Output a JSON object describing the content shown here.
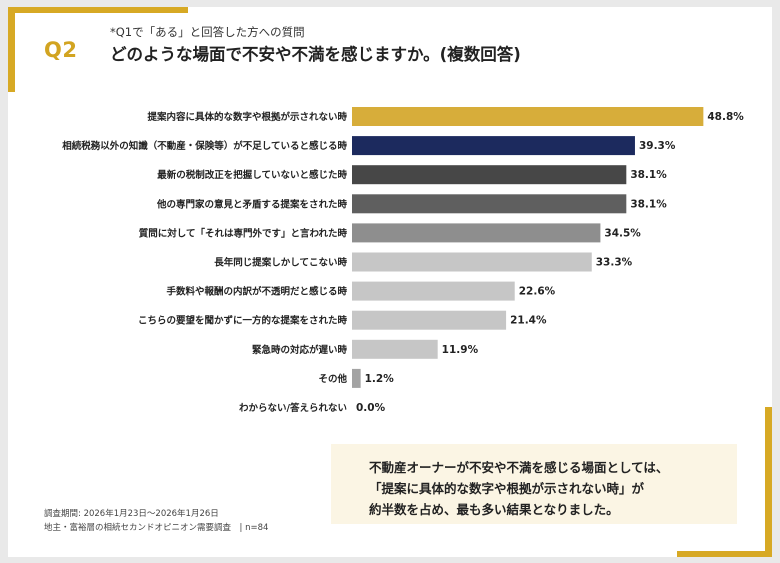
{
  "header": {
    "q_label": "Q2",
    "subtitle": "*Q1で「ある」と回答した方への質問",
    "title": "どのような場面で不安や不満を感じますか。(複数回答)"
  },
  "chart_data": {
    "type": "bar",
    "orientation": "horizontal",
    "categories": [
      "提案内容に具体的な数字や根拠が示されない時",
      "相続税務以外の知識（不動産・保険等）が不足していると感じる時",
      "最新の税制改正を把握していないと感じた時",
      "他の専門家の意見と矛盾する提案をされた時",
      "質問に対して「それは専門外です」と言われた時",
      "長年同じ提案しかしてこない時",
      "手数料や報酬の内訳が不透明だと感じる時",
      "こちらの要望を聞かずに一方的な提案をされた時",
      "緊急時の対応が遅い時",
      "その他",
      "わからない/答えられない"
    ],
    "values": [
      48.8,
      39.3,
      38.1,
      38.1,
      34.5,
      33.3,
      22.6,
      21.4,
      11.9,
      1.2,
      0.0
    ],
    "value_labels": [
      "48.8%",
      "39.3%",
      "38.1%",
      "38.1%",
      "34.5%",
      "33.3%",
      "22.6%",
      "21.4%",
      "11.9%",
      "1.2%",
      "0.0%"
    ],
    "bar_colors": [
      "#d7ad3a",
      "#1c2a5e",
      "#474747",
      "#5f5f5f",
      "#8e8e8e",
      "#c6c6c6",
      "#c6c6c6",
      "#c6c6c6",
      "#c6c6c6",
      "#a3a3a3",
      "#c6c6c6"
    ],
    "xlim": [
      0,
      50
    ],
    "grid": false,
    "legend": "none"
  },
  "summary": {
    "lines": [
      "不動産オーナーが不安や不満を感じる場面としては、",
      "「提案に具体的な数字や根拠が示されない時」が",
      "約半数を占め、最も多い結果となりました。"
    ]
  },
  "footer": {
    "line1": "調査期間: 2026年1月23日〜2026年1月26日",
    "line2": "地主・富裕層の相続セカンドオピニオン需要調査　| n=84"
  },
  "colors": {
    "accent": "#d7a924",
    "highlight_bar": "#d7ad3a",
    "navy_bar": "#1c2a5e",
    "summary_bg": "#fbf5e4"
  }
}
